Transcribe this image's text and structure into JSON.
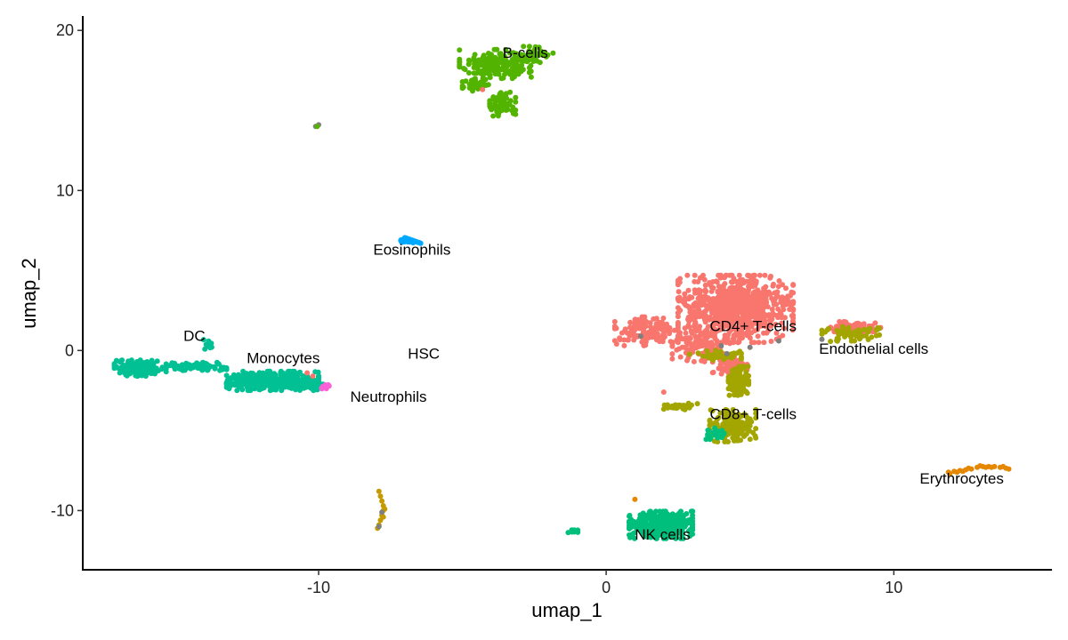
{
  "chart_data": {
    "type": "scatter",
    "xlabel": "umap_1",
    "ylabel": "umap_2",
    "xlim": [
      -18.2,
      15.5
    ],
    "ylim": [
      -13.7,
      20.9
    ],
    "xticks": [
      -10,
      0,
      10
    ],
    "yticks": [
      -10,
      0,
      10,
      20
    ],
    "grid": false,
    "legend": "none",
    "clusters": [
      {
        "label": "B-cells",
        "color": "#53B400",
        "label_pos": [
          -3.6,
          18.3
        ],
        "blobs": [
          [
            -3.8,
            17.9,
            1.3,
            0.9,
            220
          ],
          [
            -3.6,
            15.4,
            0.45,
            0.75,
            80
          ],
          [
            -4.5,
            16.6,
            0.5,
            0.5,
            40
          ],
          [
            -2.5,
            18.5,
            0.7,
            0.5,
            40
          ]
        ]
      },
      {
        "label": "Eosinophils",
        "color": "#00A9FF",
        "label_pos": [
          -8.1,
          6.0
        ],
        "blobs": [
          [
            -6.9,
            6.85,
            0.3,
            0.15,
            25
          ]
        ]
      },
      {
        "label": "DC",
        "color": "#00C094",
        "label_pos": [
          -14.7,
          0.6
        ],
        "blobs": [
          [
            -13.8,
            0.4,
            0.2,
            0.35,
            12
          ]
        ]
      },
      {
        "label": "Monocytes",
        "color": "#00C094",
        "label_pos": [
          -12.5,
          -0.8
        ],
        "blobs": [
          [
            -16.2,
            -1.1,
            0.9,
            0.5,
            180
          ],
          [
            -14.3,
            -1.0,
            1.1,
            0.25,
            70
          ],
          [
            -11.6,
            -1.9,
            1.6,
            0.6,
            360
          ],
          [
            -10.3,
            -2.1,
            0.5,
            0.35,
            60
          ]
        ]
      },
      {
        "label": "Neutrophils",
        "color": "#FB61D7",
        "label_pos": [
          -8.9,
          -3.2
        ],
        "blobs": [
          [
            -9.8,
            -2.3,
            0.25,
            0.15,
            8
          ]
        ]
      },
      {
        "label": "HSC",
        "color": "#A58AFF",
        "label_pos": [
          -6.9,
          -0.5
        ],
        "blobs": []
      },
      {
        "label": "CD4+ T-cells",
        "color": "#F8766D",
        "label_pos": [
          3.6,
          1.2
        ],
        "blobs": [
          [
            4.5,
            2.6,
            2.0,
            2.1,
            800
          ],
          [
            1.4,
            1.2,
            1.1,
            0.9,
            130
          ],
          [
            3.3,
            0.3,
            1.0,
            1.0,
            120
          ],
          [
            4.3,
            -1.0,
            0.6,
            0.6,
            60
          ]
        ]
      },
      {
        "label": "Endothelial cells",
        "color": "#F8766D",
        "label_pos": [
          7.4,
          -0.2
        ],
        "blobs": [
          [
            8.7,
            1.4,
            0.9,
            0.4,
            100
          ]
        ]
      },
      {
        "label": "CD8+ T-cells",
        "color": "#A3A500",
        "label_pos": [
          3.6,
          -4.3
        ],
        "blobs": [
          [
            4.6,
            -1.9,
            0.35,
            0.9,
            110
          ],
          [
            4.4,
            -4.7,
            0.8,
            1.0,
            170
          ],
          [
            2.6,
            -3.5,
            0.6,
            0.2,
            35
          ],
          [
            3.8,
            -0.3,
            0.9,
            0.3,
            40
          ],
          [
            8.5,
            1.1,
            1.0,
            0.55,
            60
          ]
        ]
      },
      {
        "label": "NK cells",
        "color": "#00BF7D",
        "label_pos": [
          1.0,
          -11.8
        ],
        "blobs": [
          [
            1.9,
            -10.9,
            1.1,
            0.85,
            420
          ],
          [
            -1.2,
            -11.3,
            0.25,
            0.1,
            12
          ],
          [
            3.8,
            -5.2,
            0.35,
            0.35,
            30
          ]
        ]
      },
      {
        "label": "Erythrocytes",
        "color": "#E58700",
        "label_pos": [
          10.9,
          -8.3
        ],
        "blobs": []
      }
    ],
    "extra_series": [
      {
        "color": "#C49A00",
        "points": [
          [
            -7.9,
            -8.8
          ],
          [
            -7.85,
            -9.1
          ],
          [
            -7.8,
            -9.4
          ],
          [
            -7.75,
            -9.7
          ],
          [
            -7.75,
            -10.0
          ],
          [
            -7.8,
            -10.3
          ],
          [
            -7.85,
            -10.6
          ],
          [
            -7.9,
            -10.9
          ],
          [
            -7.95,
            -11.1
          ],
          [
            -7.7,
            -9.9
          ],
          [
            -7.75,
            -10.4
          ]
        ]
      },
      {
        "color": "#7F7F7F",
        "points": [
          [
            -10.1,
            14.0
          ],
          [
            -10.0,
            14.1
          ],
          [
            -7.8,
            -10.1
          ],
          [
            -7.9,
            -11.0
          ],
          [
            1.2,
            0.9
          ],
          [
            6.0,
            0.6
          ],
          [
            7.5,
            0.7
          ],
          [
            5.0,
            0.2
          ],
          [
            4.0,
            0.3
          ],
          [
            4.2,
            -0.2
          ]
        ]
      },
      {
        "color": "#E58700",
        "points": [
          [
            11.9,
            -7.6
          ],
          [
            12.1,
            -7.55
          ],
          [
            12.3,
            -7.5
          ],
          [
            12.5,
            -7.45
          ],
          [
            12.7,
            -7.4
          ],
          [
            12.9,
            -7.3
          ],
          [
            13.1,
            -7.25
          ],
          [
            13.3,
            -7.25
          ],
          [
            13.5,
            -7.25
          ],
          [
            13.7,
            -7.3
          ],
          [
            13.9,
            -7.35
          ],
          [
            14.0,
            -7.4
          ],
          [
            12.2,
            -7.6
          ],
          [
            12.6,
            -7.35
          ],
          [
            13.0,
            -7.2
          ],
          [
            13.4,
            -7.3
          ],
          [
            13.8,
            -7.25
          ],
          [
            11.95,
            -7.7
          ],
          [
            12.4,
            -7.55
          ],
          [
            13.2,
            -7.3
          ],
          [
            1.0,
            -9.3
          ]
        ]
      },
      {
        "color": "#53B400",
        "points": [
          [
            -10.05,
            14.0
          ]
        ]
      },
      {
        "color": "#F8766D",
        "points": [
          [
            -4.3,
            16.3
          ],
          [
            2.0,
            -2.6
          ],
          [
            -10.4,
            -1.4
          ],
          [
            -10.2,
            -1.6
          ]
        ]
      }
    ]
  }
}
